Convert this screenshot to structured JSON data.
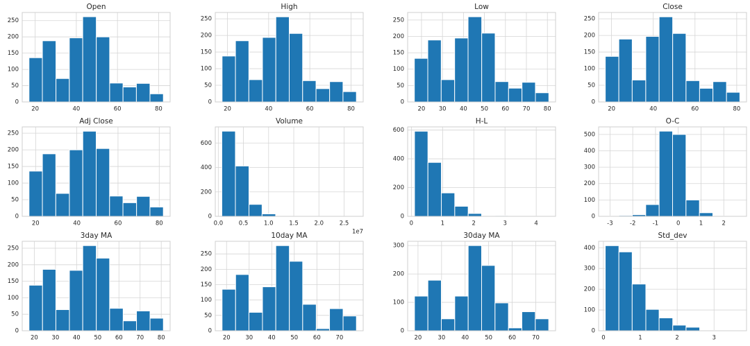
{
  "chart_data": [
    {
      "type": "histogram",
      "title": "Open",
      "bins": [
        17.0,
        23.5,
        30.1,
        36.6,
        43.1,
        49.7,
        56.2,
        62.7,
        69.2,
        75.8,
        82.3
      ],
      "values": [
        136,
        188,
        72,
        197,
        262,
        200,
        58,
        46,
        57,
        25
      ],
      "color": "#1f77b4",
      "xlim": [
        13.7,
        85.6
      ],
      "ylim": [
        0,
        275
      ],
      "xticks": [
        20,
        40,
        60,
        80
      ],
      "yticks": [
        0,
        50,
        100,
        150,
        200,
        250
      ],
      "grid": true
    },
    {
      "type": "histogram",
      "title": "High",
      "bins": [
        17.4,
        23.9,
        30.4,
        37.0,
        43.5,
        50.0,
        56.5,
        63.0,
        69.6,
        76.1,
        82.6
      ],
      "values": [
        138,
        184,
        67,
        194,
        256,
        206,
        64,
        40,
        61,
        31
      ],
      "color": "#1f77b4",
      "xlim": [
        14.1,
        85.9
      ],
      "ylim": [
        0,
        269
      ],
      "xticks": [
        20,
        40,
        60,
        80
      ],
      "yticks": [
        0,
        50,
        100,
        150,
        200,
        250
      ],
      "grid": true
    },
    {
      "type": "histogram",
      "title": "Low",
      "bins": [
        16.6,
        23.0,
        29.4,
        35.8,
        42.2,
        48.7,
        55.1,
        61.5,
        67.9,
        74.3,
        80.7
      ],
      "values": [
        133,
        189,
        68,
        195,
        260,
        210,
        62,
        42,
        60,
        28
      ],
      "color": "#1f77b4",
      "xlim": [
        13.4,
        83.9
      ],
      "ylim": [
        0,
        273
      ],
      "xticks": [
        20,
        30,
        40,
        50,
        60,
        70,
        80
      ],
      "yticks": [
        0,
        50,
        100,
        150,
        200,
        250
      ],
      "grid": true
    },
    {
      "type": "histogram",
      "title": "Close",
      "bins": [
        17.0,
        23.5,
        29.9,
        36.4,
        42.8,
        49.3,
        55.7,
        62.2,
        68.6,
        75.1,
        81.5
      ],
      "values": [
        137,
        189,
        66,
        197,
        256,
        206,
        64,
        41,
        61,
        29
      ],
      "color": "#1f77b4",
      "xlim": [
        13.8,
        84.7
      ],
      "ylim": [
        0,
        269
      ],
      "xticks": [
        20,
        40,
        60,
        80
      ],
      "yticks": [
        0,
        50,
        100,
        150,
        200,
        250
      ],
      "grid": true
    },
    {
      "type": "histogram",
      "title": "Adj Close",
      "bins": [
        16.8,
        23.3,
        29.8,
        36.4,
        42.9,
        49.4,
        55.9,
        62.4,
        69.0,
        75.5,
        82.0
      ],
      "values": [
        136,
        188,
        69,
        200,
        256,
        204,
        61,
        41,
        60,
        28
      ],
      "color": "#1f77b4",
      "xlim": [
        13.5,
        85.3
      ],
      "ylim": [
        0,
        269
      ],
      "xticks": [
        20,
        40,
        60,
        80
      ],
      "yticks": [
        0,
        50,
        100,
        150,
        200,
        250
      ],
      "grid": true
    },
    {
      "type": "histogram",
      "title": "Volume",
      "bins": [
        0.07,
        0.34,
        0.61,
        0.87,
        1.14,
        1.41,
        1.68,
        1.95,
        2.21,
        2.48,
        2.75
      ],
      "values": [
        697,
        412,
        98,
        20,
        3,
        1,
        1,
        1,
        0,
        1
      ],
      "color": "#1f77b4",
      "xlim": [
        -0.06,
        2.88
      ],
      "ylim": [
        0,
        732
      ],
      "xticks": [
        {
          "value": 0,
          "label": "0.0"
        },
        0.5,
        {
          "value": 1,
          "label": "1.0"
        },
        1.5,
        {
          "value": 2,
          "label": "2.0"
        },
        2.5
      ],
      "x_offset_label": "1e7",
      "yticks": [
        0,
        200,
        400,
        600
      ],
      "grid": true
    },
    {
      "type": "histogram",
      "title": "H-L",
      "bins": [
        0.1,
        0.53,
        0.96,
        1.39,
        1.82,
        2.25,
        2.68,
        3.11,
        3.54,
        3.97,
        4.4
      ],
      "values": [
        592,
        375,
        163,
        70,
        20,
        2,
        5,
        0,
        0,
        1
      ],
      "color": "#1f77b4",
      "xlim": [
        -0.12,
        4.62
      ],
      "ylim": [
        0,
        622
      ],
      "xticks": [
        0,
        1,
        2,
        3,
        4
      ],
      "yticks": [
        0,
        200,
        400,
        600
      ],
      "grid": true
    },
    {
      "type": "histogram",
      "title": "O-C",
      "bins": [
        -3.2,
        -2.61,
        -2.02,
        -1.43,
        -0.84,
        -0.25,
        0.34,
        0.93,
        1.52,
        2.11,
        2.7
      ],
      "values": [
        2,
        5,
        10,
        72,
        520,
        500,
        100,
        22,
        2,
        1
      ],
      "color": "#1f77b4",
      "xlim": [
        -3.5,
        3.0
      ],
      "ylim": [
        0,
        546
      ],
      "xticks": [
        -3,
        -2,
        -1,
        0,
        1,
        2
      ],
      "yticks": [
        0,
        100,
        200,
        300,
        400,
        500
      ],
      "grid": true
    },
    {
      "type": "histogram",
      "title": "3day MA",
      "bins": [
        17.5,
        23.9,
        30.2,
        36.6,
        42.9,
        49.3,
        55.6,
        62.0,
        68.3,
        74.7,
        81.0
      ],
      "values": [
        138,
        186,
        64,
        183,
        258,
        220,
        68,
        30,
        60,
        38
      ],
      "color": "#1f77b4",
      "xlim": [
        14.3,
        84.2
      ],
      "ylim": [
        0,
        271
      ],
      "xticks": [
        20,
        30,
        40,
        50,
        60,
        70,
        80
      ],
      "yticks": [
        0,
        50,
        100,
        150,
        200,
        250
      ],
      "grid": true
    },
    {
      "type": "histogram",
      "title": "10day MA",
      "bins": [
        18.0,
        24.0,
        29.9,
        35.9,
        41.8,
        47.8,
        53.7,
        59.7,
        65.6,
        71.6,
        77.5
      ],
      "values": [
        135,
        183,
        60,
        143,
        277,
        226,
        86,
        7,
        72,
        48
      ],
      "color": "#1f77b4",
      "xlim": [
        15.0,
        80.5
      ],
      "ylim": [
        0,
        291
      ],
      "xticks": [
        20,
        30,
        40,
        50,
        60,
        70
      ],
      "yticks": [
        0,
        50,
        100,
        150,
        200,
        250
      ],
      "grid": true
    },
    {
      "type": "histogram",
      "title": "30day MA",
      "bins": [
        18.5,
        24.2,
        29.9,
        35.6,
        41.3,
        47.0,
        52.7,
        58.4,
        64.1,
        69.8,
        75.5
      ],
      "values": [
        122,
        178,
        42,
        122,
        300,
        230,
        98,
        10,
        67,
        42
      ],
      "color": "#1f77b4",
      "xlim": [
        15.6,
        78.4
      ],
      "ylim": [
        0,
        315
      ],
      "xticks": [
        20,
        30,
        40,
        50,
        60,
        70
      ],
      "yticks": [
        0,
        100,
        200,
        300
      ],
      "grid": true
    },
    {
      "type": "histogram",
      "title": "Std_dev",
      "bins": [
        0.05,
        0.42,
        0.78,
        1.15,
        1.51,
        1.88,
        2.24,
        2.61,
        2.97,
        3.34,
        3.7
      ],
      "values": [
        410,
        380,
        225,
        103,
        62,
        27,
        17,
        0,
        2,
        2
      ],
      "color": "#1f77b4",
      "xlim": [
        -0.13,
        3.88
      ],
      "ylim": [
        0,
        431
      ],
      "xticks": [
        0,
        1,
        2,
        3
      ],
      "yticks": [
        0,
        100,
        200,
        300,
        400
      ],
      "grid": true
    }
  ]
}
